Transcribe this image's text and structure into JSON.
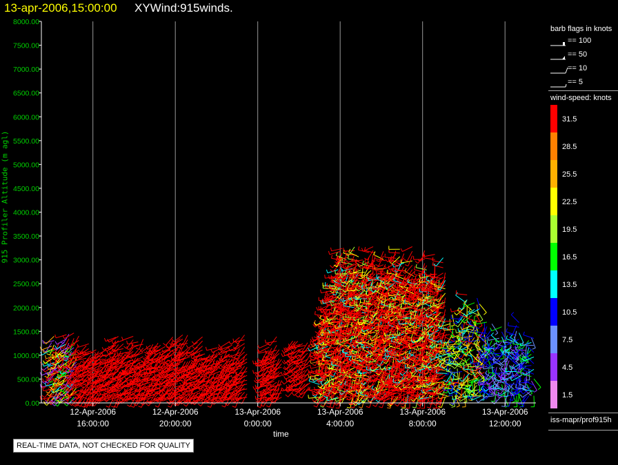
{
  "header": {
    "date": "13-apr-2006,15:00:00",
    "title": "XYWind:915winds."
  },
  "note": "REAL-TIME DATA, NOT CHECKED FOR QUALITY",
  "legend": {
    "barb_title": "barb flags in knots",
    "barbs": [
      {
        "label": "== 100",
        "value": 100
      },
      {
        "label": "== 50",
        "value": 50
      },
      {
        "label": "== 10",
        "value": 10
      },
      {
        "label": "== 5",
        "value": 5
      }
    ],
    "speed_title": "wind-speed: knots",
    "speed_scale": [
      {
        "label": "31.5",
        "color": "#ff0000"
      },
      {
        "label": "28.5",
        "color": "#ff8000"
      },
      {
        "label": "25.5",
        "color": "#ffb000"
      },
      {
        "label": "22.5",
        "color": "#ffff00"
      },
      {
        "label": "19.5",
        "color": "#aaff30"
      },
      {
        "label": "16.5",
        "color": "#00ff00"
      },
      {
        "label": "13.5",
        "color": "#00ffff"
      },
      {
        "label": "10.5",
        "color": "#0000ff"
      },
      {
        "label": "7.5",
        "color": "#6a90ff"
      },
      {
        "label": "4.5",
        "color": "#9933ff"
      },
      {
        "label": "1.5",
        "color": "#ee88ee"
      }
    ],
    "source": "iss-mapr/prof915h"
  },
  "chart_data": {
    "type": "wind-barb time-height",
    "title": "XYWind:915winds.",
    "xlabel": "time",
    "ylabel": "915 Profiler Altitude (m agl)",
    "y_ticks": [
      "0.00",
      "500.00",
      "1000.00",
      "1500.00",
      "2000.00",
      "2500.00",
      "3000.00",
      "3500.00",
      "4000.00",
      "4500.00",
      "5000.00",
      "5500.00",
      "6000.00",
      "6500.00",
      "7000.00",
      "7500.00",
      "8000.00"
    ],
    "ylim": [
      0,
      8000
    ],
    "x_range_hours": [
      13.5,
      37.5
    ],
    "x_ticks": [
      {
        "date": "12-Apr-2006",
        "time": "16:00:00",
        "hour": 16
      },
      {
        "date": "12-Apr-2006",
        "time": "20:00:00",
        "hour": 20
      },
      {
        "date": "13-Apr-2006",
        "time": "0:00:00",
        "hour": 24
      },
      {
        "date": "13-Apr-2006",
        "time": "4:00:00",
        "hour": 28
      },
      {
        "date": "13-Apr-2006",
        "time": "8:00:00",
        "hour": 32
      },
      {
        "date": "13-Apr-2006",
        "time": "12:00:00",
        "hour": 36
      }
    ],
    "grid": "vertical lines at x ticks",
    "data_summary": [
      {
        "period": "12-Apr 15:00 - 13-Apr 1:00",
        "alt_range_m": [
          100,
          1500
        ],
        "dominant_speed_kt": 31.5
      },
      {
        "period": "13-Apr 1:00 - 2:00",
        "alt_range_m": [
          100,
          1300
        ],
        "dominant_speed_kt": 31.5
      },
      {
        "period": "13-Apr 3:00 - 10:00",
        "alt_range_m": [
          100,
          3300
        ],
        "dominant_speed_kt": 31.5
      },
      {
        "period": "13-Apr 10:00 - 15:00",
        "alt_range_m": [
          100,
          2800
        ],
        "dominant_speed_kt": 10.5
      }
    ]
  }
}
